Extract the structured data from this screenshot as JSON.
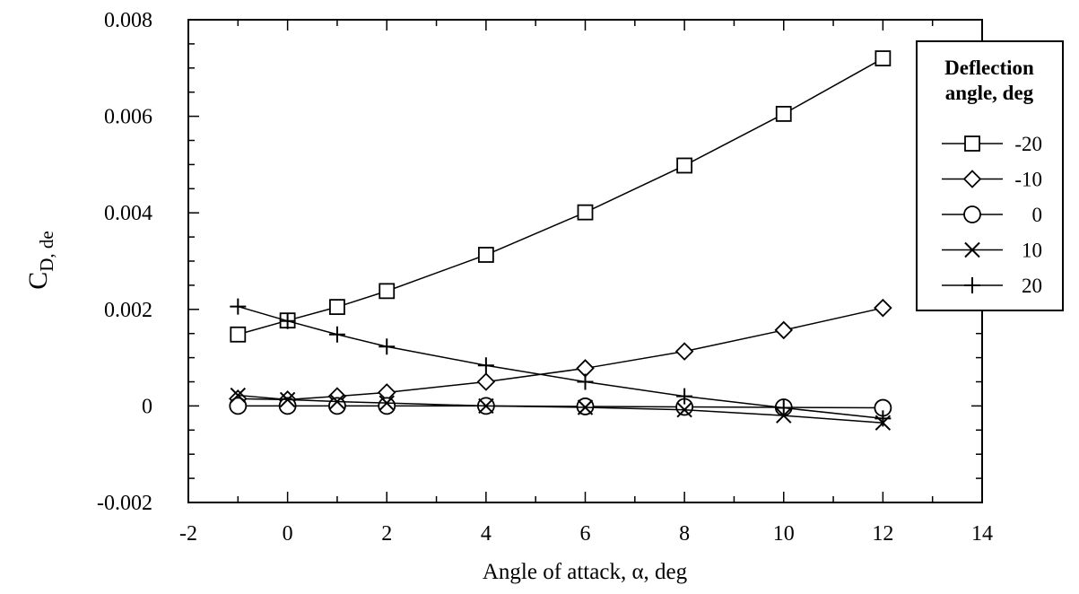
{
  "chart_data": {
    "type": "line",
    "xlabel": "Angle of attack, α, deg",
    "ylabel": {
      "main": "C",
      "sub": "D, de"
    },
    "xlim": [
      -2,
      14
    ],
    "ylim": [
      -0.002,
      0.008
    ],
    "x_ticks": [
      -2,
      0,
      2,
      4,
      6,
      8,
      10,
      12,
      14
    ],
    "x_tick_labels": [
      "-2",
      "0",
      "2",
      "4",
      "6",
      "8",
      "10",
      "12",
      "14"
    ],
    "y_ticks": [
      -0.002,
      0,
      0.002,
      0.004,
      0.006,
      0.008
    ],
    "y_tick_labels": [
      "-0.002",
      "0",
      "0.002",
      "0.004",
      "0.006",
      "0.008"
    ],
    "grid": false,
    "legend": {
      "title_line1": "Deflection",
      "title_line2": "angle, deg",
      "placement": "top-right"
    },
    "x": [
      -1,
      0,
      1,
      2,
      4,
      6,
      8,
      10,
      12
    ],
    "series": [
      {
        "name": "-20",
        "marker": "square",
        "values": [
          0.00148,
          0.00177,
          0.00205,
          0.00238,
          0.00313,
          0.00401,
          0.00498,
          0.00605,
          0.0072
        ]
      },
      {
        "name": "-10",
        "marker": "diamond",
        "values": [
          0.00015,
          0.00013,
          0.0002,
          0.00028,
          0.0005,
          0.00078,
          0.00113,
          0.00157,
          0.00203
        ]
      },
      {
        "name": "0",
        "marker": "circle",
        "values": [
          0.0,
          0.0,
          0.0,
          0.0,
          0.0,
          -1e-05,
          -2e-05,
          -3e-05,
          -4e-05
        ]
      },
      {
        "name": "10",
        "marker": "x",
        "values": [
          0.00022,
          0.00013,
          9e-05,
          6e-05,
          0.0,
          -3e-05,
          -8e-05,
          -0.0002,
          -0.00035
        ]
      },
      {
        "name": "20",
        "marker": "plus",
        "values": [
          0.00206,
          0.00176,
          0.00148,
          0.00123,
          0.00084,
          0.0005,
          0.0002,
          -4e-05,
          -0.00026
        ]
      }
    ]
  }
}
